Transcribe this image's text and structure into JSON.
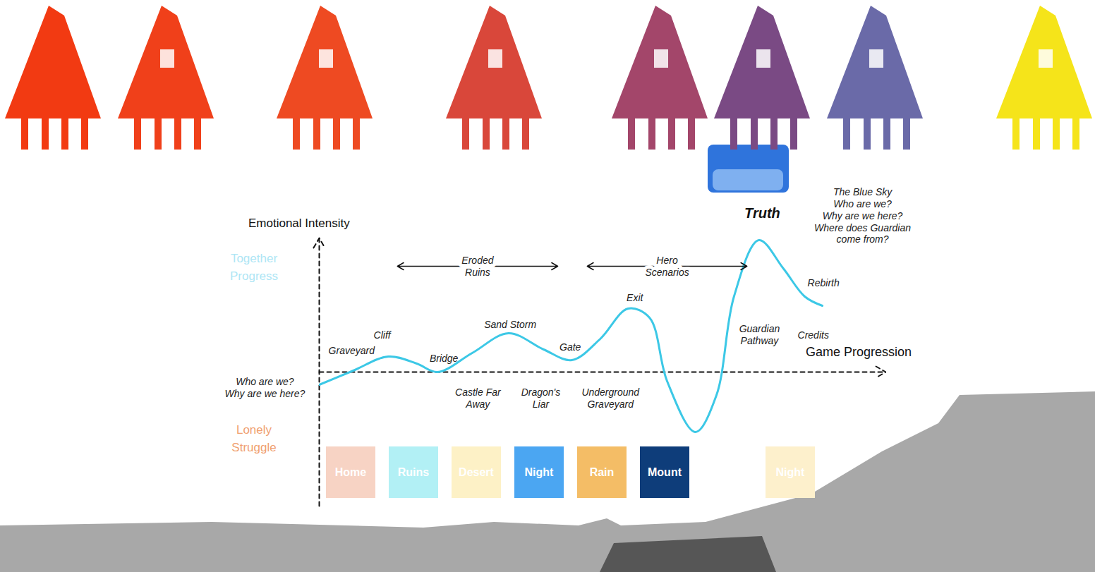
{
  "chart_data": {
    "type": "line",
    "x_label": "Game Progression",
    "y_label": "Emotional Intensity",
    "y_side_labels": {
      "top": "Together Progress",
      "bottom": "Lonely Struggle"
    },
    "x": [
      0,
      6,
      12.2,
      17.2,
      20.9,
      27,
      33.4,
      39.6,
      44.6,
      49.6,
      54.5,
      58.3,
      61.4,
      66.4,
      70.1,
      73.2,
      77.6,
      81.9,
      85.7,
      88.8
    ],
    "values": [
      -1.8,
      0.2,
      2.2,
      1.2,
      0,
      2.7,
      5.5,
      3.2,
      1.7,
      4.7,
      9,
      7.7,
      -1.3,
      -8.5,
      -3.3,
      10.7,
      18.7,
      14.7,
      10.7,
      9.4
    ],
    "color": "#3cc8e6",
    "xlim": [
      0,
      100
    ],
    "ylim": [
      -19,
      19
    ],
    "baseline": 0,
    "tick_labels": false,
    "annotations": [
      {
        "text": "Who are we?\nWhy are we here?",
        "x": -9.6,
        "y": -2.2
      },
      {
        "text": "Graveyard",
        "x": 5.7,
        "y": 3.1
      },
      {
        "text": "Cliff",
        "x": 11.1,
        "y": 5.3
      },
      {
        "text": "Bridge",
        "x": 22,
        "y": 2
      },
      {
        "text": "Castle Far\nAway",
        "x": 28,
        "y": -3.7
      },
      {
        "text": "Sand Storm",
        "x": 33.7,
        "y": 6.8
      },
      {
        "text": "Dragon's\nLiar",
        "x": 39.1,
        "y": -3.7
      },
      {
        "text": "Gate",
        "x": 44.3,
        "y": 3.6
      },
      {
        "text": "Underground\nGraveyard",
        "x": 51.4,
        "y": -3.7
      },
      {
        "text": "Exit",
        "x": 55.7,
        "y": 10.6
      },
      {
        "text": "Guardian\nPathway",
        "x": 77.7,
        "y": 5.3
      },
      {
        "text": "Credits",
        "x": 87.2,
        "y": 5.3
      },
      {
        "text": "Rebirth",
        "x": 89,
        "y": 12.7
      },
      {
        "text": "The Blue Sky\nWho are we?\nWhy are we here?\nWhere does Guardian\ncome from?",
        "x": 95.9,
        "y": 22.2
      }
    ],
    "peak_label": {
      "text": "Truth",
      "x": 78.2,
      "y": 22.6
    },
    "spans": [
      {
        "text": "Eroded\nRuins",
        "x1": 13.8,
        "x2": 42.1,
        "y": 15
      },
      {
        "text": "Hero\nScenarios",
        "x1": 47.3,
        "x2": 75.5,
        "y": 15
      }
    ],
    "scenes": [
      {
        "label": "Home",
        "color": "#f7d3c4"
      },
      {
        "label": "Ruins",
        "color": "#b2f0f5"
      },
      {
        "label": "Desert",
        "color": "#fdf1c6"
      },
      {
        "label": "Night",
        "color": "#4ba6f2"
      },
      {
        "label": "Rain",
        "color": "#f4bd66"
      },
      {
        "label": "Mount",
        "color": "#0e3d7a"
      },
      null,
      {
        "label": "Night",
        "color": "#fdf0cc"
      }
    ]
  }
}
